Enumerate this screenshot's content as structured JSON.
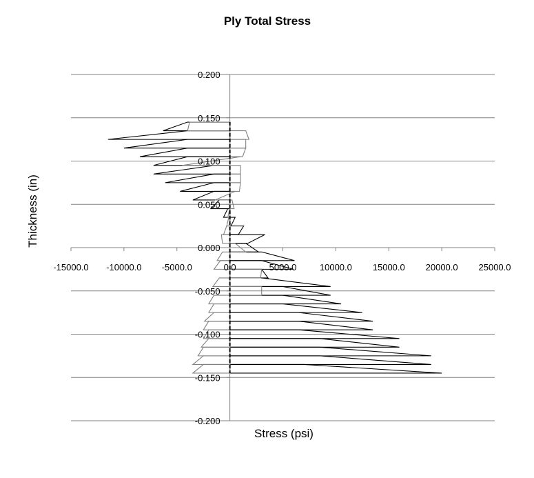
{
  "chart_data": {
    "type": "ply-stress-profile",
    "title": "Ply Total Stress",
    "xlabel": "Stress (psi)",
    "ylabel": "Thickness (in)",
    "xlim": [
      -15000,
      25000
    ],
    "ylim": [
      -0.2,
      0.2
    ],
    "x_ticks": [
      "-15000.0",
      "-10000.0",
      "-5000.0",
      "0.0",
      "5000.0",
      "10000.0",
      "15000.0",
      "20000.0",
      "25000.0"
    ],
    "y_ticks": [
      "0.200",
      "0.150",
      "0.100",
      "0.050",
      "0.000",
      "-0.050",
      "-0.100",
      "-0.150",
      "-0.200"
    ],
    "grid": true,
    "colors": {
      "series1": "#000000",
      "series2": "#808080",
      "grid": "#808080",
      "midline": "#000000"
    },
    "series": [
      {
        "color": "#000000",
        "plies": [
          {
            "z": [
              0.135,
              0.145
            ],
            "s": [
              -6300,
              -4000
            ]
          },
          {
            "z": [
              0.125,
              0.135
            ],
            "s": [
              -11500,
              -4000
            ]
          },
          {
            "z": [
              0.115,
              0.125
            ],
            "s": [
              -10000,
              -4000
            ]
          },
          {
            "z": [
              0.105,
              0.115
            ],
            "s": [
              -8500,
              -4000
            ]
          },
          {
            "z": [
              0.095,
              0.105
            ],
            "s": [
              -7200,
              -4000
            ]
          },
          {
            "z": [
              0.085,
              0.095
            ],
            "s": [
              -7200,
              -1500
            ]
          },
          {
            "z": [
              0.075,
              0.085
            ],
            "s": [
              -6100,
              -1500
            ]
          },
          {
            "z": [
              0.065,
              0.075
            ],
            "s": [
              -4700,
              -1500
            ]
          },
          {
            "z": [
              0.055,
              0.065
            ],
            "s": [
              -3500,
              -1500
            ]
          },
          {
            "z": [
              0.045,
              0.055
            ],
            "s": [
              -1800,
              -1000
            ]
          },
          {
            "z": [
              0.035,
              0.045
            ],
            "s": [
              -600,
              -200
            ]
          },
          {
            "z": [
              0.025,
              0.035
            ],
            "s": [
              100,
              500
            ]
          },
          {
            "z": [
              0.015,
              0.025
            ],
            "s": [
              800,
              1300
            ]
          },
          {
            "z": [
              0.005,
              0.015
            ],
            "s": [
              1700,
              3300
            ]
          },
          {
            "z": [
              -0.005,
              0.005
            ],
            "s": [
              2700,
              1500
            ]
          },
          {
            "z": [
              -0.015,
              -0.005
            ],
            "s": [
              6100,
              3000
            ]
          },
          {
            "z": [
              -0.025,
              -0.015
            ],
            "s": [
              6000,
              3000
            ]
          },
          {
            "z": [
              -0.035,
              -0.025
            ],
            "s": [
              3600,
              3000
            ]
          },
          {
            "z": [
              -0.045,
              -0.035
            ],
            "s": [
              9500,
              3000
            ]
          },
          {
            "z": [
              -0.055,
              -0.045
            ],
            "s": [
              9500,
              5000
            ]
          },
          {
            "z": [
              -0.065,
              -0.055
            ],
            "s": [
              10500,
              5000
            ]
          },
          {
            "z": [
              -0.075,
              -0.065
            ],
            "s": [
              12500,
              5000
            ]
          },
          {
            "z": [
              -0.085,
              -0.075
            ],
            "s": [
              13500,
              6500
            ]
          },
          {
            "z": [
              -0.095,
              -0.085
            ],
            "s": [
              13500,
              6500
            ]
          },
          {
            "z": [
              -0.105,
              -0.095
            ],
            "s": [
              16000,
              6500
            ]
          },
          {
            "z": [
              -0.115,
              -0.105
            ],
            "s": [
              16000,
              8500
            ]
          },
          {
            "z": [
              -0.125,
              -0.115
            ],
            "s": [
              19000,
              8500
            ]
          },
          {
            "z": [
              -0.135,
              -0.125
            ],
            "s": [
              19000,
              8500
            ]
          },
          {
            "z": [
              -0.145,
              -0.135
            ],
            "s": [
              20000,
              7000
            ]
          }
        ]
      },
      {
        "color": "#808080",
        "plies": [
          {
            "z": [
              0.135,
              0.145
            ],
            "s": [
              -4000,
              -3800
            ]
          },
          {
            "z": [
              0.125,
              0.135
            ],
            "s": [
              1800,
              1500
            ]
          },
          {
            "z": [
              0.115,
              0.125
            ],
            "s": [
              1500,
              1500
            ]
          },
          {
            "z": [
              0.105,
              0.115
            ],
            "s": [
              1200,
              1500
            ]
          },
          {
            "z": [
              0.095,
              0.105
            ],
            "s": [
              -4500,
              1000
            ]
          },
          {
            "z": [
              0.085,
              0.095
            ],
            "s": [
              1000,
              1000
            ]
          },
          {
            "z": [
              0.075,
              0.085
            ],
            "s": [
              1000,
              1000
            ]
          },
          {
            "z": [
              0.065,
              0.075
            ],
            "s": [
              900,
              1000
            ]
          },
          {
            "z": [
              0.055,
              0.065
            ],
            "s": [
              -1400,
              500
            ]
          },
          {
            "z": [
              0.045,
              0.055
            ],
            "s": [
              400,
              200
            ]
          },
          {
            "z": [
              0.035,
              0.045
            ],
            "s": [
              -200,
              0
            ]
          },
          {
            "z": [
              0.025,
              0.035
            ],
            "s": [
              -300,
              -100
            ]
          },
          {
            "z": [
              0.015,
              0.025
            ],
            "s": [
              -600,
              -300
            ]
          },
          {
            "z": [
              0.005,
              0.015
            ],
            "s": [
              -700,
              -800
            ]
          },
          {
            "z": [
              -0.005,
              0.005
            ],
            "s": [
              1500,
              500
            ]
          },
          {
            "z": [
              -0.015,
              -0.005
            ],
            "s": [
              -1200,
              -700
            ]
          },
          {
            "z": [
              -0.025,
              -0.015
            ],
            "s": [
              -1500,
              -900
            ]
          },
          {
            "z": [
              -0.035,
              -0.025
            ],
            "s": [
              2900,
              3000
            ]
          },
          {
            "z": [
              -0.045,
              -0.035
            ],
            "s": [
              -1600,
              -1000
            ]
          },
          {
            "z": [
              -0.055,
              -0.045
            ],
            "s": [
              3000,
              3000
            ]
          },
          {
            "z": [
              -0.065,
              -0.055
            ],
            "s": [
              -2000,
              -1500
            ]
          },
          {
            "z": [
              -0.075,
              -0.065
            ],
            "s": [
              -2000,
              -1500
            ]
          },
          {
            "z": [
              -0.085,
              -0.075
            ],
            "s": [
              -2400,
              -1500
            ]
          },
          {
            "z": [
              -0.095,
              -0.085
            ],
            "s": [
              -2500,
              -2000
            ]
          },
          {
            "z": [
              -0.105,
              -0.095
            ],
            "s": [
              -2500,
              -2000
            ]
          },
          {
            "z": [
              -0.115,
              -0.105
            ],
            "s": [
              -2700,
              -2000
            ]
          },
          {
            "z": [
              -0.125,
              -0.115
            ],
            "s": [
              -3000,
              -2500
            ]
          },
          {
            "z": [
              -0.135,
              -0.125
            ],
            "s": [
              -3500,
              -2500
            ]
          },
          {
            "z": [
              -0.145,
              -0.135
            ],
            "s": [
              -3500,
              -2500
            ]
          }
        ]
      }
    ]
  }
}
